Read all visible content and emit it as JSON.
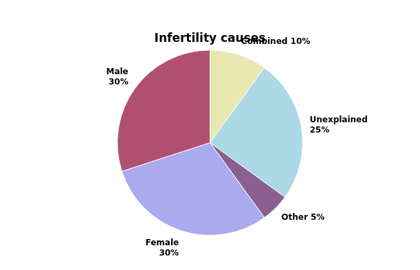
{
  "chart_data": {
    "type": "pie",
    "title": "Infertility causes",
    "categories": [
      "Combined 10%",
      "Unexplained\n25%",
      "Other 5%",
      "Female\n30%",
      "Male\n30%"
    ],
    "values": [
      10,
      25,
      5,
      30,
      30
    ],
    "colors": [
      "#e8e8b0",
      "#add8e6",
      "#8b6090",
      "#aaaaee",
      "#b05070"
    ]
  }
}
